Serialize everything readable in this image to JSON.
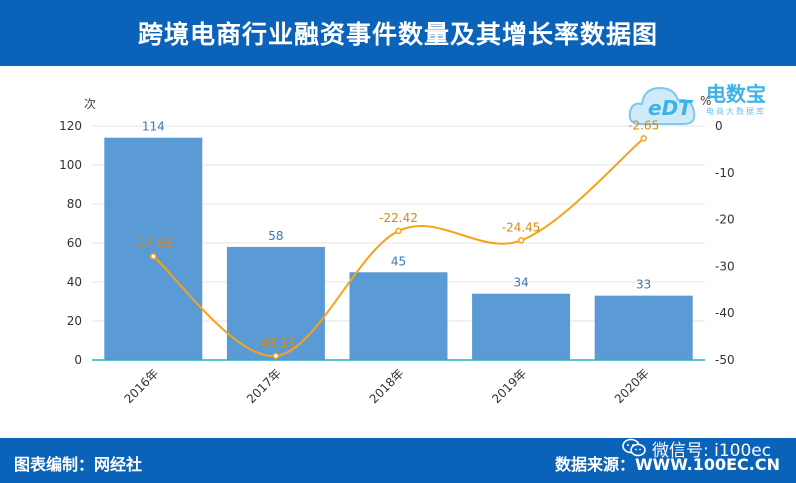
{
  "header": {
    "title": "跨境电商行业融资事件数量及其增长率数据图"
  },
  "footer": {
    "left_label": "图表编制：网经社",
    "right_label": "数据来源：WWW.100EC.CN",
    "wechat": "微信号: i100ec"
  },
  "logo": {
    "brand": "电数宝",
    "sub": "电商大数据库",
    "edt": "eDT"
  },
  "colors": {
    "bar": "#5b9bd5",
    "line": "#f6a31c",
    "header": "#0a63b8"
  },
  "chart_data": {
    "type": "bar",
    "title": "跨境电商行业融资事件数量及其增长率数据图",
    "categories": [
      "2016年",
      "2017年",
      "2018年",
      "2019年",
      "2020年"
    ],
    "series": [
      {
        "type": "bar",
        "values": [
          114,
          58,
          45,
          34,
          33
        ]
      },
      {
        "type": "line",
        "axis": "right",
        "values": [
          -27.85,
          -49.13,
          -22.42,
          -24.45,
          -2.65
        ]
      }
    ],
    "ylabel": "次",
    "ylim": [
      0,
      120
    ],
    "yticks": [
      0,
      20,
      40,
      60,
      80,
      100,
      120
    ],
    "y2label": "%",
    "y2lim": [
      -50,
      0
    ],
    "y2ticks": [
      0,
      -10,
      -20,
      -30,
      -40,
      -50
    ],
    "grid": true
  }
}
